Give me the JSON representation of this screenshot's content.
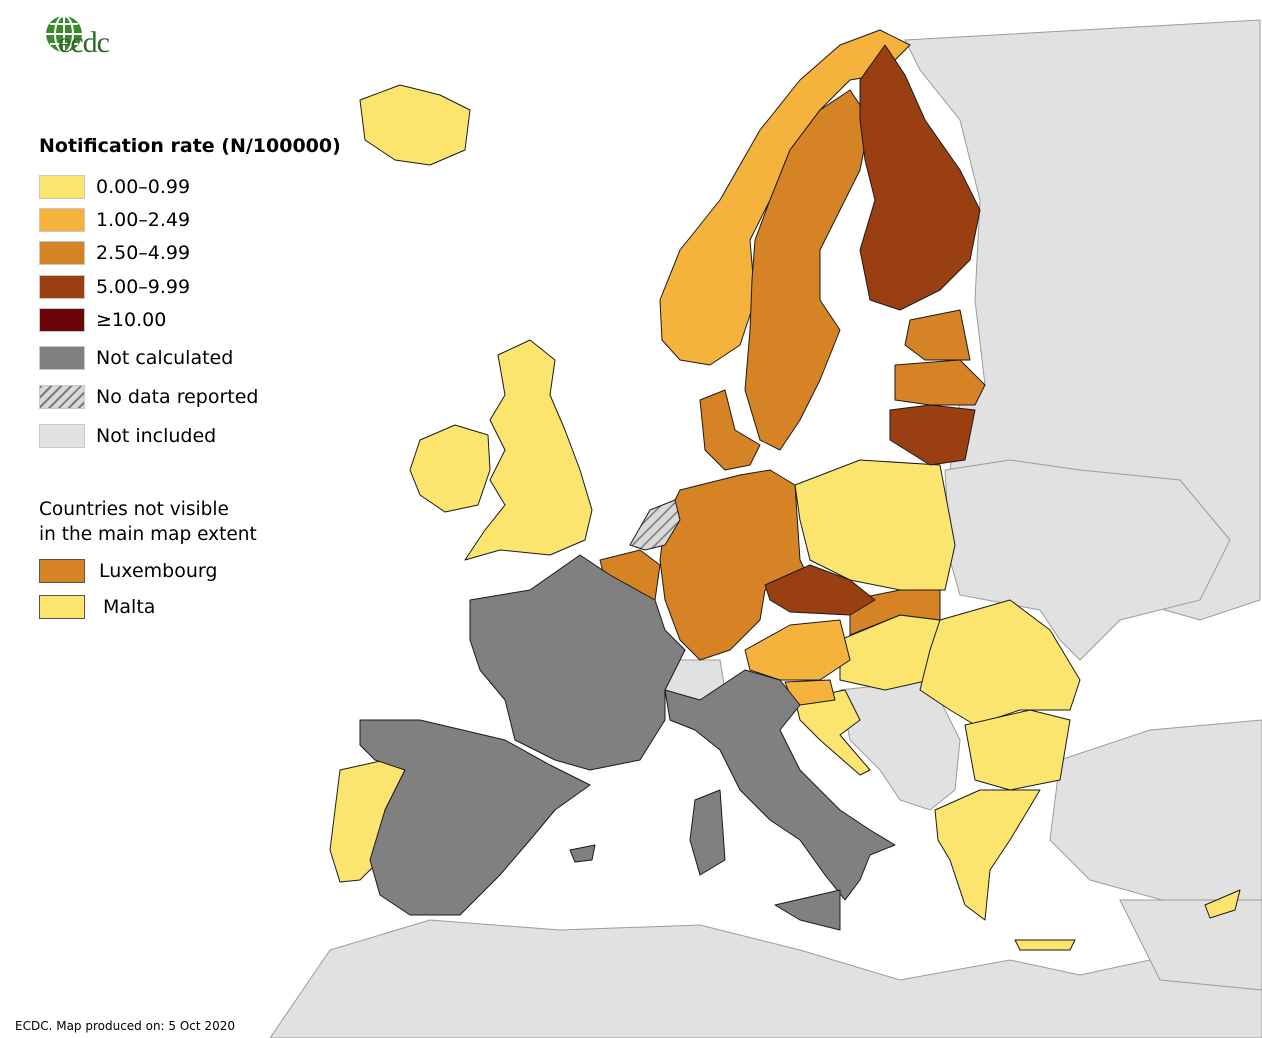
{
  "legend": {
    "title": "Notification rate (N/100000)",
    "items": [
      {
        "label": "0.00–0.99",
        "color": "#fbe56f"
      },
      {
        "label": "1.00–2.49",
        "color": "#f5b33e"
      },
      {
        "label": "2.50–4.99",
        "color": "#d68325"
      },
      {
        "label": "5.00–9.99",
        "color": "#9a3f12"
      },
      {
        "label": "≥10.00",
        "color": "#6b0606"
      },
      {
        "label": "Not calculated",
        "color": "#808080"
      },
      {
        "label": "No data reported",
        "color": "hatched"
      },
      {
        "label": "Not included",
        "color": "#e1e1e1"
      }
    ]
  },
  "not_visible": {
    "title_line1": "Countries not visible",
    "title_line2": "in the main map extent",
    "items": [
      {
        "label": "Luxembourg",
        "color": "#d68325"
      },
      {
        "label": "Malta",
        "color": "#fbe56f"
      }
    ]
  },
  "logo": {
    "text": "ecdc"
  },
  "footer": "ECDC. Map produced on: 5 Oct 2020"
}
